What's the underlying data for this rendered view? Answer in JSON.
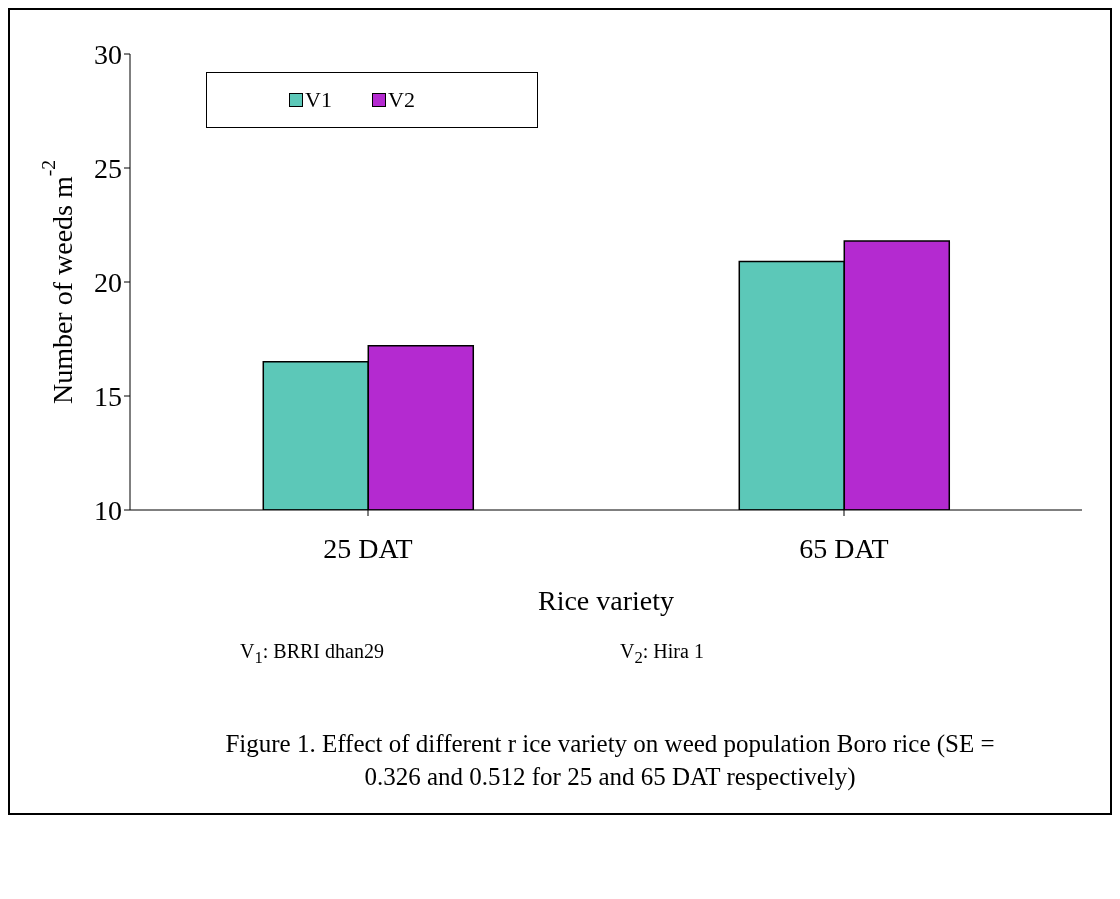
{
  "chart_data": {
    "type": "bar",
    "xlabel": "Rice variety",
    "ylabel": "Number of weeds m$^{-2}$",
    "categories": [
      "25 DAT",
      "65 DAT"
    ],
    "series": [
      {
        "name": "V1",
        "color": "#5cc8b8",
        "values": [
          16.5,
          20.9
        ]
      },
      {
        "name": "V2",
        "color": "#b42ad0",
        "values": [
          17.2,
          21.8
        ]
      }
    ],
    "ylim": [
      10,
      30
    ],
    "yticks": [
      10,
      15,
      20,
      25,
      30
    ],
    "grid": false,
    "legend": "top left",
    "annotations": [
      "V$_{1}$: BRRI dhan29",
      "V$_{2}$: Hira 1",
      "Figure 1. Effect  of  different r ice variety on weed population Boro rice (SE = 0.326 and 0.512 for 25 and 65 DAT respectively)"
    ]
  }
}
